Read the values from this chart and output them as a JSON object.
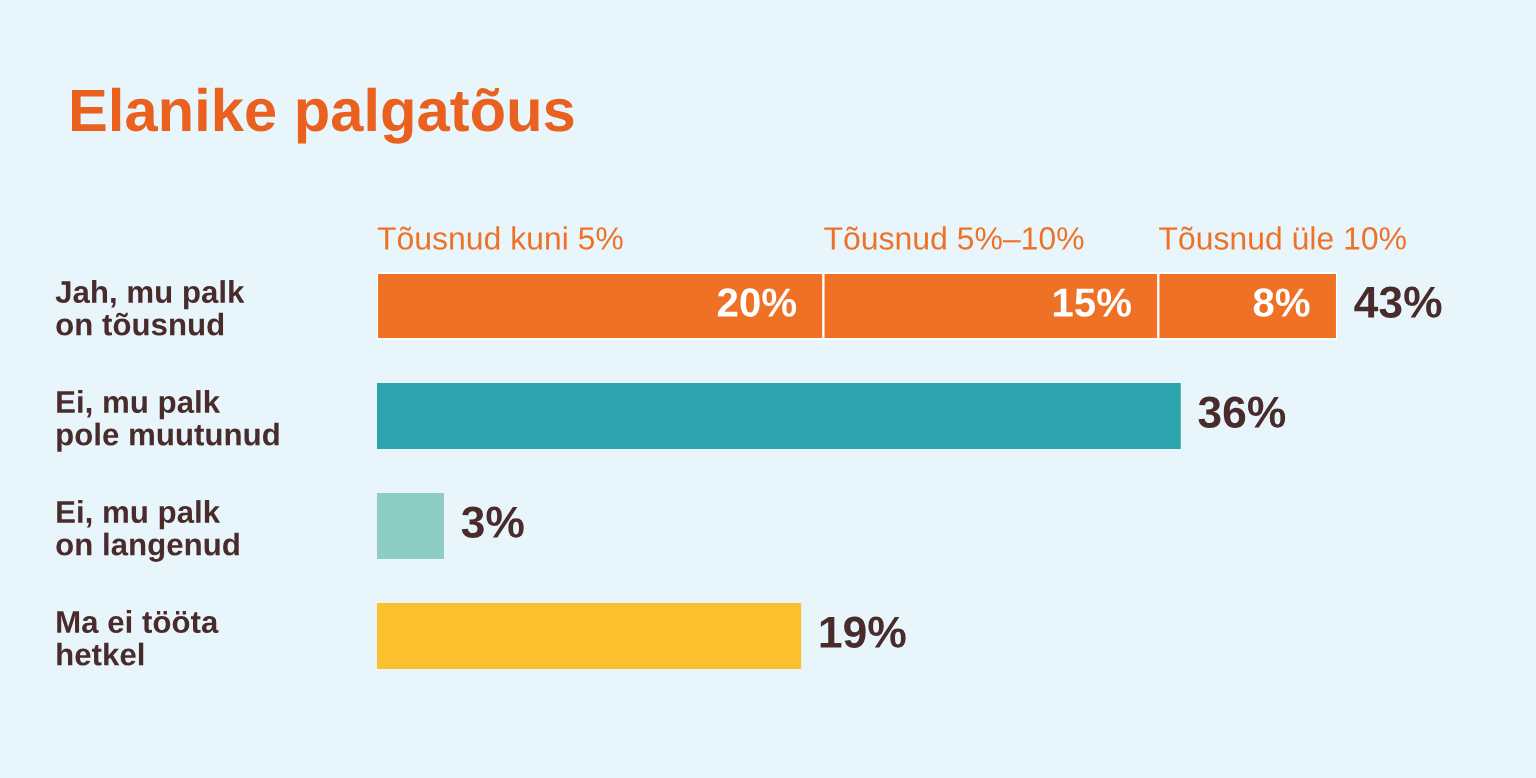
{
  "chart_data": {
    "type": "bar",
    "orientation": "horizontal",
    "stacked": true,
    "title": "Elanike palgatõus",
    "categories": [
      "Jah, mu palk\non tõusnud",
      "Ei, mu palk\npole muutunud",
      "Ei, mu palk\non langenud",
      "Ma ei tööta\nhetkel"
    ],
    "series": [
      {
        "name": "Tõusnud kuni 5%",
        "color": "#ee7125",
        "values": [
          20,
          null,
          null,
          null
        ],
        "value_labels": [
          "20%",
          null,
          null,
          null
        ]
      },
      {
        "name": "Tõusnud 5%–10%",
        "color": "#ee7125",
        "values": [
          15,
          null,
          null,
          null
        ],
        "value_labels": [
          "15%",
          null,
          null,
          null
        ]
      },
      {
        "name": "Tõusnud üle 10%",
        "color": "#ee7125",
        "values": [
          8,
          null,
          null,
          null
        ],
        "value_labels": [
          "8%",
          null,
          null,
          null
        ]
      },
      {
        "colors": [
          null,
          "#2ca3ad",
          "#8ecdc4",
          "#fbc02d"
        ],
        "values": [
          null,
          36,
          3,
          19
        ]
      }
    ],
    "totals": [
      "43%",
      "36%",
      "3%",
      "19%"
    ],
    "tick_labels": "y"
  }
}
